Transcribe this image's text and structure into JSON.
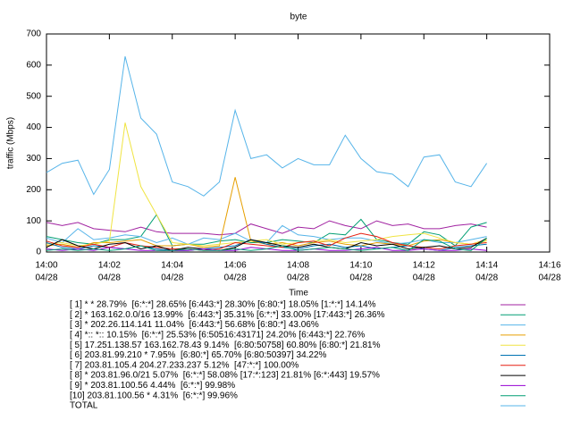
{
  "chart_data": {
    "type": "line",
    "title": "byte",
    "ylabel": "traffic (Mbps)",
    "xlabel": "Time",
    "ylim": [
      0,
      700
    ],
    "yticks": [
      0,
      100,
      200,
      300,
      400,
      500,
      600,
      700
    ],
    "xlim": [
      "14:00",
      "14:16"
    ],
    "xticks": [
      {
        "value": "14:00",
        "label": "14:00",
        "date": "04/28"
      },
      {
        "value": "14:02",
        "label": "14:02",
        "date": "04/28"
      },
      {
        "value": "14:04",
        "label": "14:04",
        "date": "04/28"
      },
      {
        "value": "14:06",
        "label": "14:06",
        "date": "04/28"
      },
      {
        "value": "14:08",
        "label": "14:08",
        "date": "04/28"
      },
      {
        "value": "14:10",
        "label": "14:10",
        "date": "04/28"
      },
      {
        "value": "14:12",
        "label": "14:12",
        "date": "04/28"
      },
      {
        "value": "14:14",
        "label": "14:14",
        "date": "04/28"
      },
      {
        "value": "14:16",
        "label": "14:16",
        "date": "04/28"
      }
    ],
    "x": [
      "14:00:00",
      "14:00:30",
      "14:01:00",
      "14:01:30",
      "14:02:00",
      "14:02:30",
      "14:03:00",
      "14:03:30",
      "14:04:00",
      "14:04:30",
      "14:05:00",
      "14:05:30",
      "14:06:00",
      "14:06:30",
      "14:07:00",
      "14:07:30",
      "14:08:00",
      "14:08:30",
      "14:09:00",
      "14:09:30",
      "14:10:00",
      "14:10:30",
      "14:11:00",
      "14:11:30",
      "14:12:00",
      "14:12:30",
      "14:13:00",
      "14:13:30",
      "14:14:00"
    ],
    "series": [
      {
        "name": "[ 1] * * 28.79%  [6:*:*] 28.65% [6:443:*] 28.30% [6:80:*] 18.05% [1:*:*] 14.14%",
        "color": "#a020a0",
        "values": [
          95,
          85,
          95,
          75,
          70,
          65,
          80,
          65,
          60,
          60,
          60,
          55,
          60,
          90,
          75,
          60,
          80,
          75,
          100,
          85,
          75,
          100,
          85,
          90,
          75,
          75,
          85,
          90,
          80
        ]
      },
      {
        "name": "[ 2] * 163.162.0.0/16 13.99%  [6:443:*] 35.31% [6:*:*] 33.00% [17:443:*] 26.36%",
        "color": "#009e73",
        "values": [
          50,
          40,
          30,
          25,
          40,
          40,
          50,
          120,
          20,
          25,
          25,
          35,
          40,
          30,
          30,
          40,
          35,
          30,
          60,
          55,
          105,
          40,
          30,
          25,
          65,
          55,
          20,
          80,
          95
        ]
      },
      {
        "name": "[ 3] * 202.26.114.141 11.04%  [6:443:*] 56.68% [6:80:*] 43.06%",
        "color": "#56b4e9",
        "values": [
          45,
          30,
          75,
          40,
          45,
          55,
          50,
          30,
          45,
          25,
          45,
          40,
          60,
          35,
          30,
          85,
          55,
          50,
          40,
          45,
          45,
          35,
          25,
          30,
          40,
          30,
          30,
          40,
          50
        ]
      },
      {
        "name": "[ 4] *:: *:: 10.15%  [6:*:*] 25.53% [6:50516:43171] 24.20% [6:443:*] 22.76%",
        "color": "#e69f00",
        "values": [
          20,
          25,
          15,
          30,
          30,
          35,
          40,
          20,
          20,
          25,
          15,
          20,
          240,
          35,
          25,
          30,
          20,
          30,
          35,
          25,
          20,
          30,
          25,
          20,
          35,
          40,
          30,
          25,
          40
        ]
      },
      {
        "name": "[ 5] 17.251.138.57 163.162.78.43 9.14%  [6:80:50758] 60.80% [6:80:*] 21.81%",
        "color": "#f0e442",
        "values": [
          25,
          30,
          20,
          25,
          35,
          415,
          210,
          120,
          30,
          25,
          20,
          25,
          30,
          35,
          40,
          25,
          30,
          35,
          40,
          30,
          35,
          40,
          50,
          55,
          60,
          45,
          30,
          25,
          35
        ]
      },
      {
        "name": "[ 6] 203.81.99.210 * 7.95%  [6:80:*] 65.70% [6:80:50397] 34.22%",
        "color": "#0072b2",
        "values": [
          30,
          15,
          10,
          20,
          15,
          10,
          20,
          10,
          5,
          5,
          10,
          15,
          20,
          40,
          25,
          15,
          10,
          20,
          25,
          15,
          20,
          10,
          15,
          20,
          10,
          5,
          15,
          20,
          25
        ]
      },
      {
        "name": "[ 7] 203.81.105.4 204.27.233.237 5.12%  [47:*:*] 100.00%",
        "color": "#e51e10",
        "values": [
          35,
          20,
          15,
          25,
          15,
          30,
          20,
          15,
          10,
          10,
          5,
          10,
          30,
          25,
          20,
          15,
          30,
          35,
          20,
          45,
          60,
          50,
          30,
          20,
          15,
          10,
          20,
          25,
          30
        ]
      },
      {
        "name": "[ 8] * 203.81.96.0/21 5.07%  [6:*:*] 58.08% [17:*:123] 21.81% [6:*:443] 19.57%",
        "color": "#000000",
        "values": [
          15,
          40,
          20,
          10,
          25,
          30,
          10,
          20,
          5,
          15,
          10,
          5,
          15,
          40,
          30,
          20,
          15,
          25,
          15,
          10,
          30,
          20,
          25,
          10,
          15,
          20,
          10,
          15,
          45
        ]
      },
      {
        "name": "[ 9] * 203.81.100.56 4.44%  [6:*:*] 99.98%",
        "color": "#9400d3",
        "values": [
          10,
          5,
          10,
          5,
          15,
          10,
          5,
          5,
          5,
          5,
          10,
          5,
          5,
          15,
          10,
          5,
          5,
          10,
          5,
          5,
          10,
          15,
          5,
          5,
          10,
          5,
          5,
          10,
          5
        ]
      },
      {
        "name": "[10] 203.81.100.56 * 4.31%  [6:*:*] 99.96%",
        "color": "#009e73",
        "values": [
          5,
          10,
          5,
          10,
          5,
          10,
          20,
          5,
          5,
          10,
          5,
          5,
          10,
          5,
          10,
          20,
          5,
          10,
          15,
          10,
          5,
          10,
          15,
          5,
          40,
          35,
          10,
          5,
          45
        ]
      },
      {
        "name": "TOTAL",
        "color": "#56b4e9",
        "values": [
          255,
          285,
          295,
          185,
          265,
          628,
          430,
          378,
          225,
          210,
          180,
          225,
          455,
          300,
          312,
          270,
          300,
          280,
          280,
          375,
          300,
          258,
          250,
          210,
          305,
          312,
          225,
          210,
          285
        ]
      }
    ]
  }
}
